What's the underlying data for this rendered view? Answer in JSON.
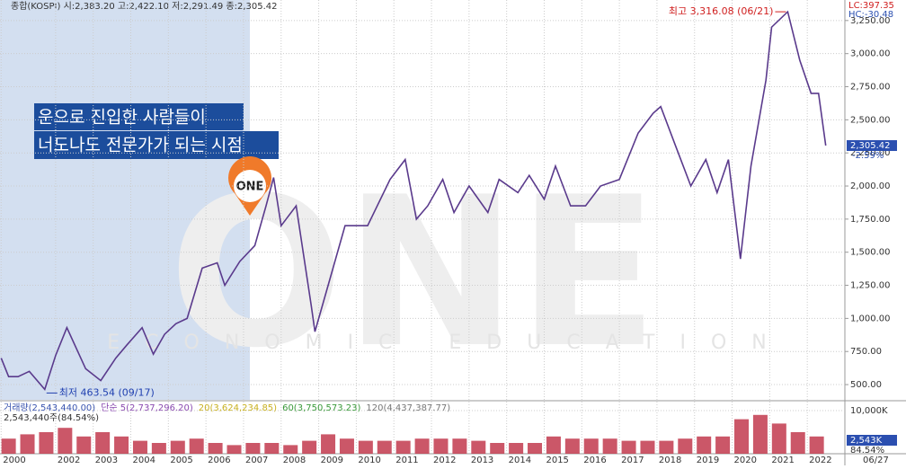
{
  "header": "종합(KOSPI) 시:2,383.20 고:2,422.10 저:2,291.49 종:2,305.42",
  "overlay": [
    "운으로 진입한 사람들이",
    "너도나도 전문가가 되는 시점"
  ],
  "watermark": {
    "logo": "ONE",
    "text": "ECONOMIC EDUCATION"
  },
  "marker_label": "ONE",
  "chart_data": [
    {
      "type": "line",
      "color": "#5a3a8c",
      "x": [
        2000.55,
        2000.75,
        2001.0,
        2001.3,
        2001.71,
        2002.0,
        2002.3,
        2002.8,
        2003.2,
        2003.6,
        2003.9,
        2004.3,
        2004.6,
        2004.9,
        2005.2,
        2005.5,
        2005.9,
        2006.3,
        2006.5,
        2006.9,
        2007.3,
        2007.6,
        2007.8,
        2008.0,
        2008.4,
        2008.8,
        2008.9,
        2009.2,
        2009.7,
        2010.3,
        2010.9,
        2011.3,
        2011.6,
        2011.9,
        2012.3,
        2012.6,
        2013.0,
        2013.5,
        2013.8,
        2014.3,
        2014.6,
        2015.0,
        2015.3,
        2015.7,
        2016.1,
        2016.5,
        2017.0,
        2017.5,
        2017.9,
        2018.1,
        2018.5,
        2018.9,
        2019.3,
        2019.6,
        2019.9,
        2020.22,
        2020.5,
        2020.9,
        2021.05,
        2021.48,
        2021.8,
        2022.1,
        2022.3,
        2022.49
      ],
      "values": [
        700,
        560,
        560,
        600,
        463.54,
        720,
        930,
        620,
        530,
        700,
        800,
        930,
        730,
        880,
        960,
        1000,
        1380,
        1420,
        1250,
        1430,
        1550,
        1850,
        2064,
        1700,
        1850,
        1100,
        900,
        1200,
        1700,
        1700,
        2050,
        2200,
        1750,
        1850,
        2050,
        1800,
        2000,
        1800,
        2050,
        1950,
        2080,
        1900,
        2150,
        1850,
        1850,
        2000,
        2050,
        2400,
        2550,
        2600,
        2300,
        2000,
        2200,
        1950,
        2200,
        1450,
        2150,
        2800,
        3200,
        3316.08,
        2950,
        2700,
        2700,
        2305.42
      ],
      "xlim": [
        2000.52,
        2023.0
      ],
      "ylim": [
        385,
        3405
      ],
      "yticks": [
        {
          "value": 500,
          "label": "500.00"
        },
        {
          "value": 750,
          "label": "750.00"
        },
        {
          "value": 1000,
          "label": "1,000.00"
        },
        {
          "value": 1250,
          "label": "1,250.00"
        },
        {
          "value": 1500,
          "label": "1,500.00"
        },
        {
          "value": 1750,
          "label": "1,750.00"
        },
        {
          "value": 2000,
          "label": "2,000.00"
        },
        {
          "value": 2250,
          "label": "2,250.00"
        },
        {
          "value": 2500,
          "label": "2,500.00"
        },
        {
          "value": 2750,
          "label": "2,750.00"
        },
        {
          "value": 3000,
          "label": "3,000.00"
        },
        {
          "value": 3250,
          "label": "3,250.00"
        }
      ],
      "grid": true,
      "high_label": "최고 3,316.08 (06/21)",
      "low_label": "최저 463.54 (09/17)",
      "last_value_label": "2,305.42",
      "change_label": "-2.59%",
      "lc_label": "LC:397.35",
      "hc_label": "HC:-30.48"
    },
    {
      "type": "bar",
      "color": "#c23a4e",
      "x": [
        2000.75,
        2001.25,
        2001.75,
        2002.25,
        2002.75,
        2003.25,
        2003.75,
        2004.25,
        2004.75,
        2005.25,
        2005.75,
        2006.25,
        2006.75,
        2007.25,
        2007.75,
        2008.25,
        2008.75,
        2009.25,
        2009.75,
        2010.25,
        2010.75,
        2011.25,
        2011.75,
        2012.25,
        2012.75,
        2013.25,
        2013.75,
        2014.25,
        2014.75,
        2015.25,
        2015.75,
        2016.25,
        2016.75,
        2017.25,
        2017.75,
        2018.25,
        2018.75,
        2019.25,
        2019.75,
        2020.25,
        2020.75,
        2021.25,
        2021.75,
        2022.25
      ],
      "values": [
        3500,
        4500,
        5000,
        6000,
        4000,
        5000,
        4000,
        3000,
        2500,
        3000,
        3500,
        2500,
        2000,
        2500,
        2500,
        2000,
        3000,
        4500,
        3500,
        3000,
        3000,
        3000,
        3500,
        3500,
        3500,
        3000,
        2500,
        2500,
        2500,
        4000,
        3500,
        3500,
        3500,
        3000,
        3000,
        3000,
        3500,
        4000,
        4000,
        8000,
        9000,
        7000,
        5000,
        4000
      ],
      "xlim": [
        2000.52,
        2023.0
      ],
      "ylim": [
        0,
        11875
      ],
      "yticks": [
        {
          "value": 10000,
          "label": "10,000K"
        }
      ],
      "xticks": [
        {
          "value": 2000.55,
          "label": "2000"
        },
        2002,
        2003,
        2004,
        2005,
        2006,
        2007,
        2008,
        2009,
        2010,
        2011,
        2012,
        2013,
        2014,
        2015,
        2016,
        2017,
        2018,
        2019,
        2020,
        2021,
        2022
      ],
      "end_label": "06/27",
      "legend": [
        {
          "text": "거래량(2,543,440.00)",
          "color": "#3a55b0"
        },
        {
          "text": "단순 5(2,737,296.20)",
          "color": "#8a4ab0"
        },
        {
          "text": "20(3,624,234.85)",
          "color": "#c8b020"
        },
        {
          "text": "60(3,750,573.23)",
          "color": "#3a9a3a"
        },
        {
          "text": "120(4,437,387.77)",
          "color": "#777777"
        }
      ],
      "sub_label": "2,543,440주(84.54%)",
      "last_value_label": "2,543K",
      "ratio_label": "84.54%"
    }
  ]
}
